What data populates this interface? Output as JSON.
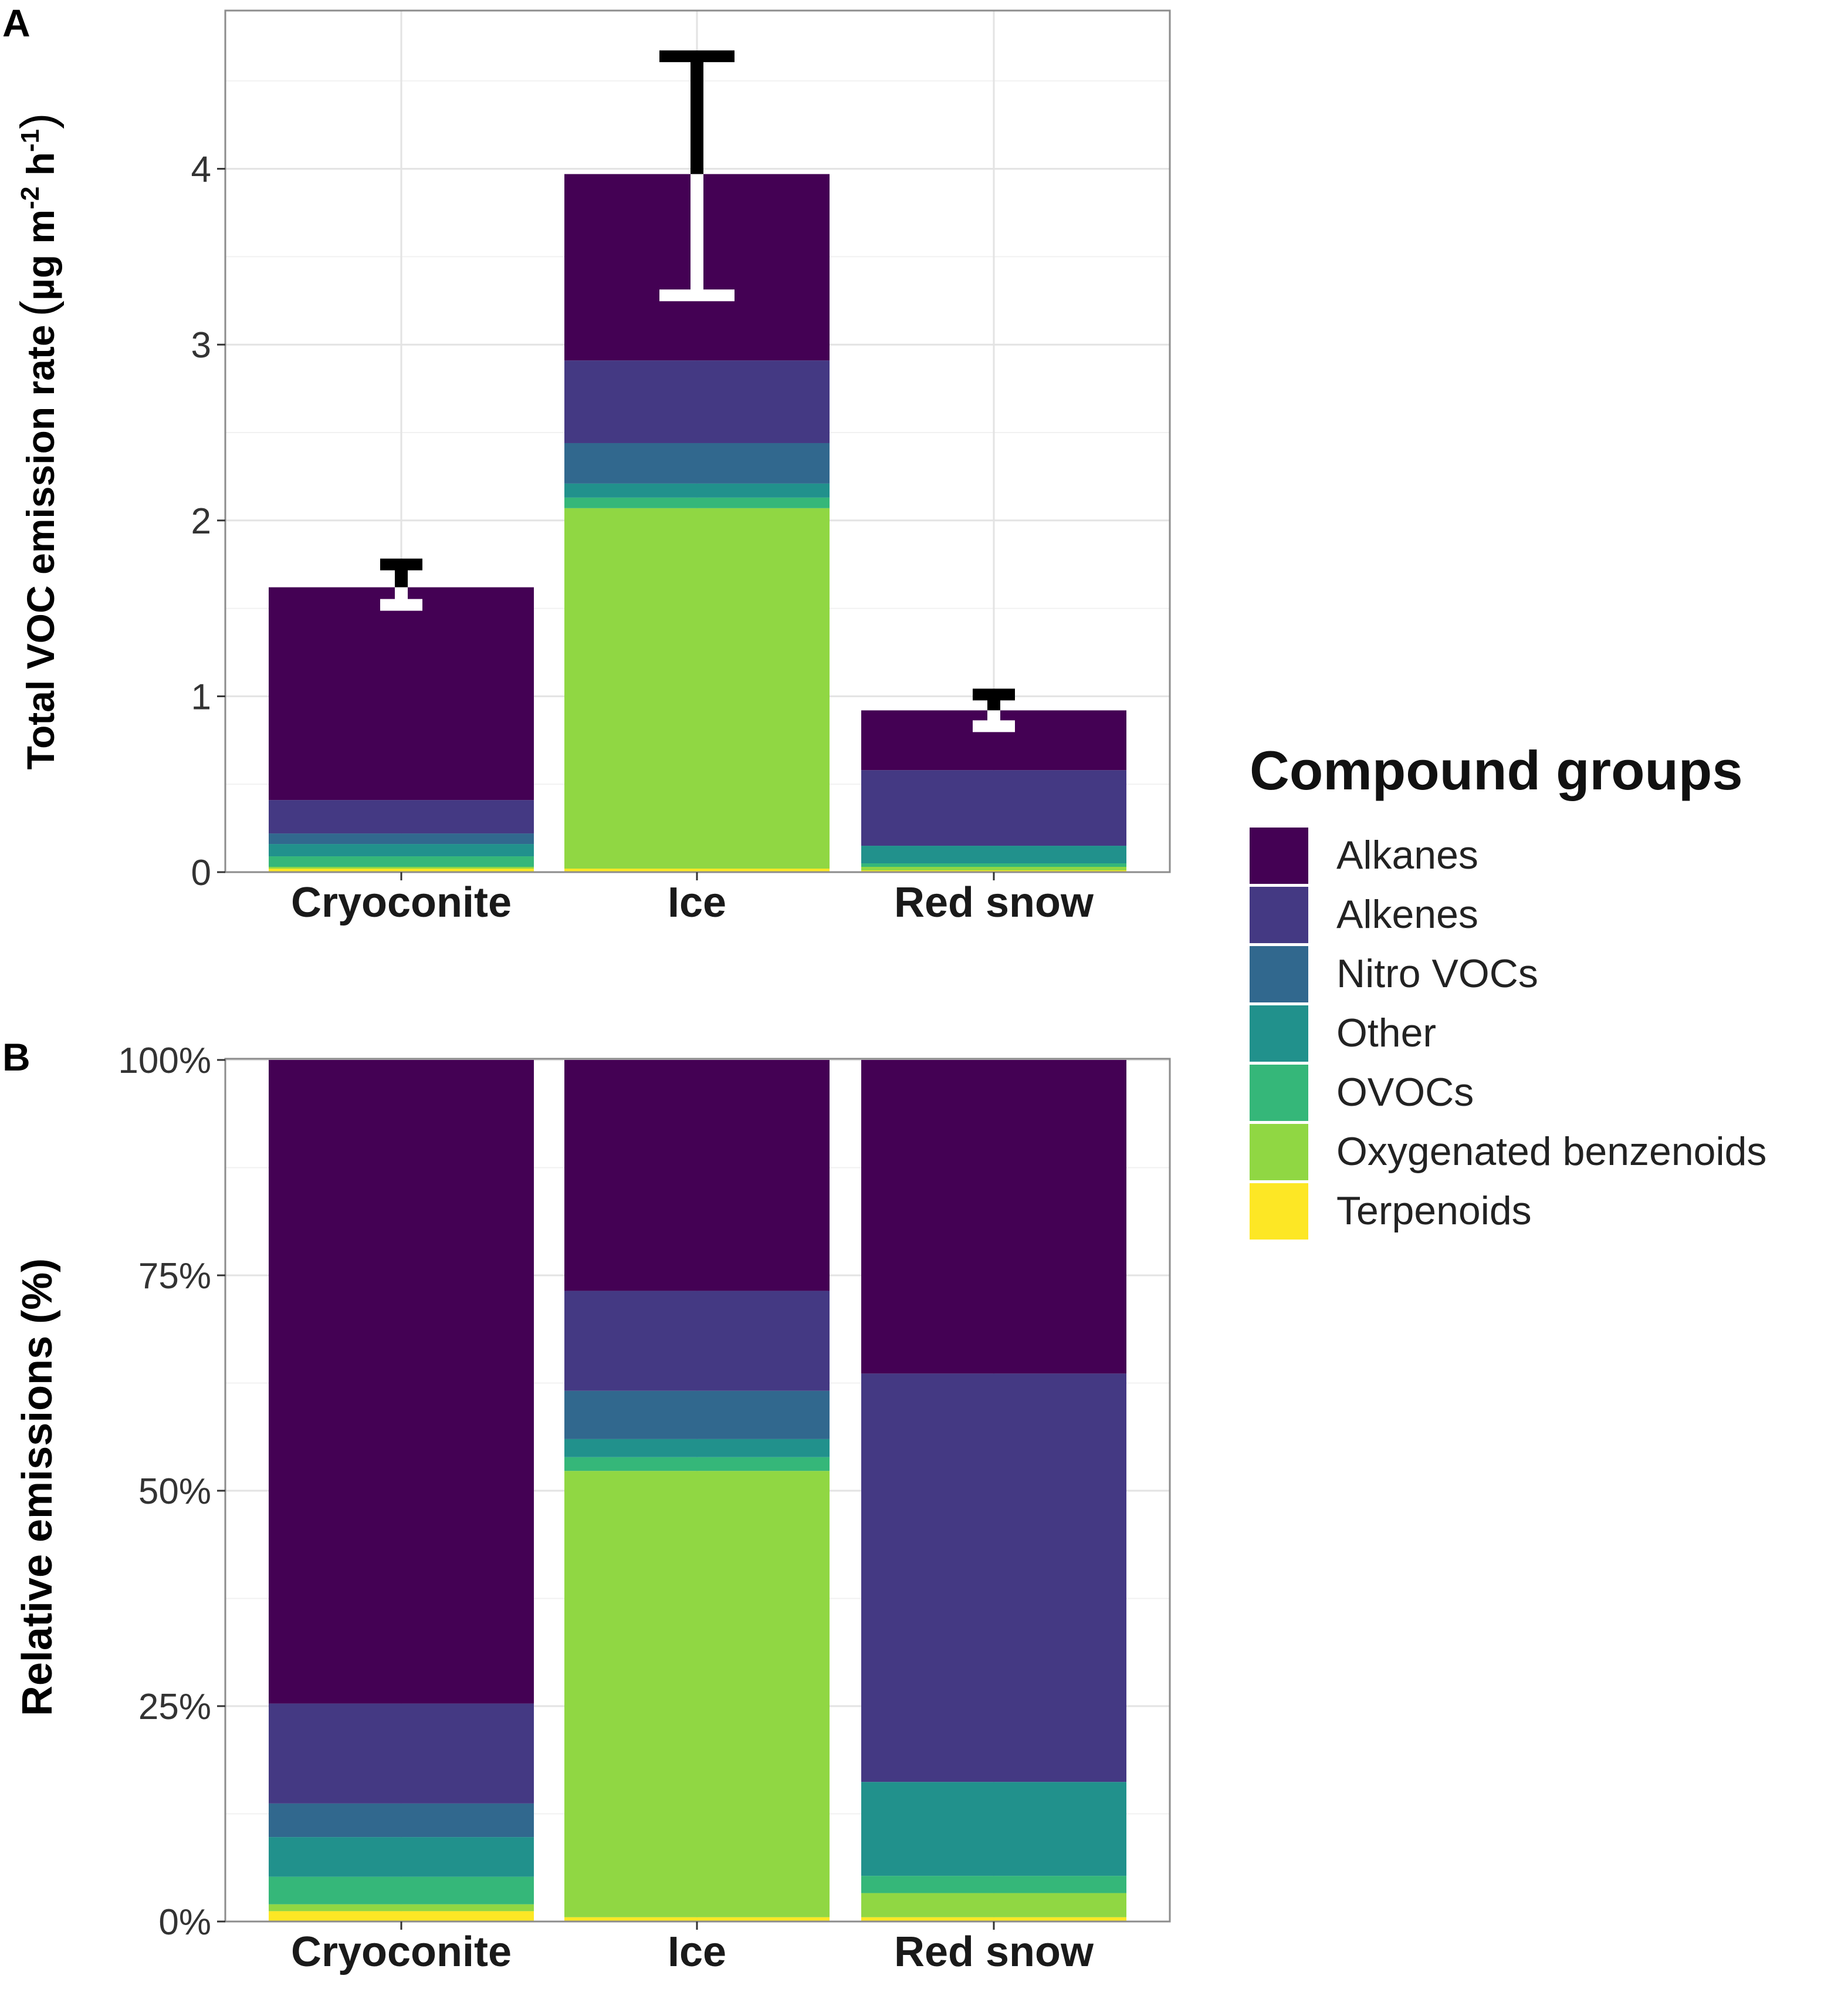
{
  "chart_data": [
    {
      "panel": "A",
      "type": "bar",
      "stacked": true,
      "categories": [
        "Cryoconite",
        "Ice",
        "Red snow"
      ],
      "ylabel": "Total VOC emission rate (µg m-2 h-1)",
      "ylabel_parts": {
        "main": "Total VOC emission rate",
        "unit_prefix": "µg m",
        "exp1": "-2",
        "unit_mid": " h",
        "exp2": "-1"
      },
      "ylim": [
        0,
        4.9
      ],
      "y_ticks": [
        0,
        1,
        2,
        3,
        4
      ],
      "y_tick_labels": [
        "0",
        "1",
        "2",
        "3",
        "4"
      ],
      "grid": true,
      "series": [
        {
          "name": "Terpenoids",
          "values": [
            0.02,
            0.02,
            0.01
          ]
        },
        {
          "name": "Oxygenated benzenoids",
          "values": [
            0.01,
            2.05,
            0.02
          ]
        },
        {
          "name": "OVOCs",
          "values": [
            0.06,
            0.06,
            0.02
          ]
        },
        {
          "name": "Other",
          "values": [
            0.07,
            0.08,
            0.1
          ]
        },
        {
          "name": "Nitro VOCs",
          "values": [
            0.06,
            0.23,
            0.0
          ]
        },
        {
          "name": "Alkenes",
          "values": [
            0.19,
            0.47,
            0.43
          ]
        },
        {
          "name": "Alkanes",
          "values": [
            1.21,
            1.06,
            0.34
          ]
        }
      ],
      "totals": [
        1.62,
        3.97,
        0.92
      ],
      "error_bars": [
        {
          "low": 1.52,
          "high": 1.75
        },
        {
          "low": 3.28,
          "high": 4.64
        },
        {
          "low": 0.83,
          "high": 1.01
        }
      ]
    },
    {
      "panel": "B",
      "type": "bar",
      "stacked": true,
      "normalized": true,
      "categories": [
        "Cryoconite",
        "Ice",
        "Red snow"
      ],
      "ylabel": "Relative emissions (%)",
      "ylim": [
        0,
        100
      ],
      "y_ticks": [
        0,
        25,
        50,
        75,
        100
      ],
      "y_tick_labels": [
        "0%",
        "25%",
        "50%",
        "75%",
        "100%"
      ],
      "grid": true,
      "series": [
        {
          "name": "Terpenoids",
          "values": [
            1.2,
            0.5,
            0.5
          ]
        },
        {
          "name": "Oxygenated benzenoids",
          "values": [
            0.8,
            51.8,
            2.8
          ]
        },
        {
          "name": "OVOCs",
          "values": [
            3.2,
            1.6,
            2.0
          ]
        },
        {
          "name": "Other",
          "values": [
            4.6,
            2.1,
            10.9
          ]
        },
        {
          "name": "Nitro VOCs",
          "values": [
            3.9,
            5.6,
            0.0
          ]
        },
        {
          "name": "Alkenes",
          "values": [
            11.6,
            11.6,
            47.4
          ]
        },
        {
          "name": "Alkanes",
          "values": [
            74.7,
            26.8,
            36.4
          ]
        }
      ]
    }
  ],
  "legend": {
    "title": "Compound groups",
    "position": "right",
    "items": [
      {
        "name": "Alkanes",
        "color": "#440154"
      },
      {
        "name": "Alkenes",
        "color": "#443983"
      },
      {
        "name": "Nitro VOCs",
        "color": "#31688E"
      },
      {
        "name": "Other",
        "color": "#21918C"
      },
      {
        "name": "OVOCs",
        "color": "#35B779"
      },
      {
        "name": "Oxygenated benzenoids",
        "color": "#90D743"
      },
      {
        "name": "Terpenoids",
        "color": "#FDE725"
      }
    ]
  },
  "colors": {
    "Alkanes": "#440154",
    "Alkenes": "#443983",
    "Nitro VOCs": "#31688E",
    "Other": "#21918C",
    "OVOCs": "#35B779",
    "Oxygenated benzenoids": "#90D743",
    "Terpenoids": "#FDE725"
  }
}
